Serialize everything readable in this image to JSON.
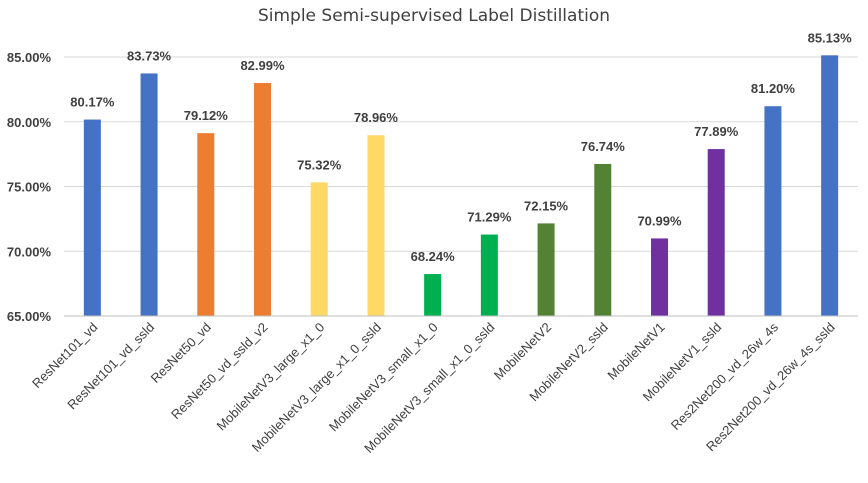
{
  "chart_data": {
    "type": "bar",
    "title": "Simple Semi-supervised Label Distillation",
    "xlabel": "",
    "ylabel": "",
    "ylim": [
      65,
      85
    ],
    "yticks": [
      65,
      70,
      75,
      80,
      85
    ],
    "ytick_labels": [
      "65.00%",
      "70.00%",
      "75.00%",
      "80.00%",
      "85.00%"
    ],
    "grid": true,
    "categories": [
      "ResNet101_vd",
      "ResNet101_vd_ssld",
      "ResNet50_vd",
      "ResNet50_vd_ssld_v2",
      "MobileNetV3_large_x1_0",
      "MobileNetV3_large_x1_0_ssld",
      "MobileNetV3_small_x1_0",
      "MobileNetV3_small_x1_0_ssld",
      "MobileNetV2",
      "MobileNetV2_ssld",
      "MobileNetV1",
      "MobileNetV1_ssld",
      "Res2Net200_vd_26w_4s",
      "Res2Net200_vd_26w_4s_ssld"
    ],
    "values": [
      80.17,
      83.73,
      79.12,
      82.99,
      75.32,
      78.96,
      68.24,
      71.29,
      72.15,
      76.74,
      70.99,
      77.89,
      81.2,
      85.13
    ],
    "data_labels": [
      "80.17%",
      "83.73%",
      "79.12%",
      "82.99%",
      "75.32%",
      "78.96%",
      "68.24%",
      "71.29%",
      "72.15%",
      "76.74%",
      "70.99%",
      "77.89%",
      "81.20%",
      "85.13%"
    ],
    "colors": [
      "#4472c4",
      "#4472c4",
      "#ed7d31",
      "#ed7d31",
      "#ffd966",
      "#ffd966",
      "#00b050",
      "#00b050",
      "#548235",
      "#548235",
      "#7030a0",
      "#7030a0",
      "#4472c4",
      "#4472c4"
    ]
  }
}
